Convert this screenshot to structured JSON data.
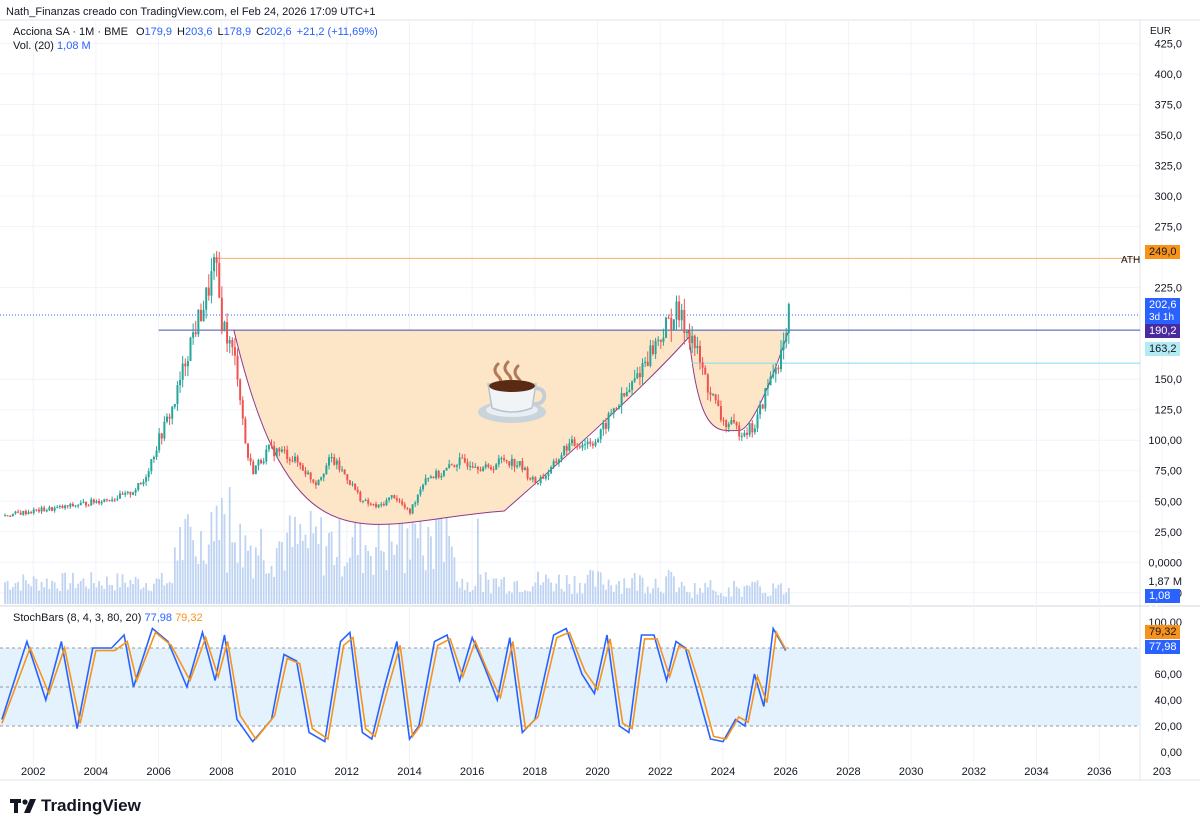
{
  "header": {
    "title": "Nath_Finanzas creado con TradingView.com, el Feb 24, 2026 17:09 UTC+1"
  },
  "legend": {
    "symbol": "Acciona SA · 1M · BME",
    "o_label": "O",
    "o_value": "179,9",
    "h_label": "H",
    "h_value": "203,6",
    "l_label": "L",
    "l_value": "178,9",
    "c_label": "C",
    "c_value": "202,6",
    "change": "+21,2 (+11,69%)",
    "vol_label": "Vol. (20)",
    "vol_value": "1,08 M"
  },
  "stoch_legend": {
    "label": "StochBars (8, 4, 3, 80, 20)",
    "k_value": "77,98",
    "d_value": "79,32"
  },
  "brand": "TradingView",
  "colors": {
    "up": "#26a69a",
    "down": "#ef5350",
    "blue": "#2962ff",
    "orange": "#f7931a",
    "cup_fill": "#fde6c8",
    "volume": "#bfd3f2",
    "stoch_band": "#e3f2fd"
  },
  "icons": {
    "cup": "coffee-cup-icon",
    "logo": "tradingview-logo-icon"
  },
  "chart_data": [
    {
      "type": "candlestick",
      "currency": "EUR",
      "y_axis_ticks": [
        "425,0",
        "400,0",
        "375,0",
        "350,0",
        "325,0",
        "300,0",
        "275,0",
        "225,0",
        "150,0",
        "125,0",
        "100,00",
        "75,00",
        "50,00",
        "25,00",
        "0,0000",
        "-25,00"
      ],
      "x_axis_ticks": [
        "2002",
        "2004",
        "2006",
        "2008",
        "2010",
        "2012",
        "2014",
        "2016",
        "2018",
        "2020",
        "2022",
        "2024",
        "2026",
        "2028",
        "2030",
        "2032",
        "2034",
        "2036",
        "203"
      ],
      "x_range": [
        2001.1,
        2037.3
      ],
      "y_range": [
        -35,
        432
      ],
      "grid": true,
      "approx_close_path": [
        [
          2001.0,
          38
        ],
        [
          2002.0,
          42
        ],
        [
          2003.0,
          45
        ],
        [
          2004.0,
          50
        ],
        [
          2005.0,
          55
        ],
        [
          2005.5,
          65
        ],
        [
          2006.0,
          100
        ],
        [
          2006.5,
          130
        ],
        [
          2007.0,
          180
        ],
        [
          2007.5,
          215
        ],
        [
          2007.8,
          245
        ],
        [
          2008.0,
          200
        ],
        [
          2008.5,
          160
        ],
        [
          2008.8,
          90
        ],
        [
          2009.0,
          75
        ],
        [
          2009.5,
          92
        ],
        [
          2010.0,
          90
        ],
        [
          2010.5,
          80
        ],
        [
          2011.0,
          65
        ],
        [
          2011.5,
          85
        ],
        [
          2012.0,
          70
        ],
        [
          2012.5,
          50
        ],
        [
          2013.0,
          45
        ],
        [
          2013.5,
          55
        ],
        [
          2014.0,
          40
        ],
        [
          2014.5,
          70
        ],
        [
          2015.0,
          72
        ],
        [
          2015.5,
          82
        ],
        [
          2016.0,
          82
        ],
        [
          2016.5,
          76
        ],
        [
          2017.0,
          85
        ],
        [
          2017.5,
          80
        ],
        [
          2018.0,
          65
        ],
        [
          2018.5,
          75
        ],
        [
          2019.0,
          95
        ],
        [
          2019.5,
          98
        ],
        [
          2020.0,
          100
        ],
        [
          2020.5,
          125
        ],
        [
          2021.0,
          140
        ],
        [
          2021.5,
          165
        ],
        [
          2022.0,
          185
        ],
        [
          2022.5,
          205
        ],
        [
          2023.0,
          185
        ],
        [
          2023.5,
          145
        ],
        [
          2024.0,
          115
        ],
        [
          2024.5,
          108
        ],
        [
          2025.0,
          110
        ],
        [
          2025.5,
          150
        ],
        [
          2026.0,
          180
        ],
        [
          2026.1,
          202.6
        ]
      ],
      "ath": {
        "label": "ATH",
        "value": "249,0",
        "value_num": 249.0
      },
      "levels": [
        {
          "name": "last",
          "value": "202,6",
          "value_num": 202.6,
          "countdown": "3d 1h"
        },
        {
          "name": "rim",
          "value": "190,2",
          "value_num": 190.2
        },
        {
          "name": "handle",
          "value": "163,2",
          "value_num": 163.2
        }
      ],
      "pattern": {
        "name": "cup-and-handle",
        "rim": 190.2,
        "cup_bottom": 42,
        "cup_x": [
          2008.4,
          2023.1
        ],
        "handle_bottom": 108,
        "handle_x": [
          2022.9,
          2026.1
        ]
      },
      "volume": {
        "label": "Vol. (20)",
        "axis_ticks": [
          "1,87 M"
        ],
        "last": "1,08 M"
      }
    },
    {
      "type": "line",
      "title": "StochBars (8, 4, 3, 80, 20)",
      "y_axis_ticks": [
        "100,00",
        "60,00",
        "40,00",
        "20,00",
        "0,00"
      ],
      "y_range": [
        0,
        100
      ],
      "bands": [
        20,
        50,
        80
      ],
      "series": [
        {
          "name": "%K",
          "value": "77,98",
          "approx": [
            [
              2001.0,
              25
            ],
            [
              2001.8,
              85
            ],
            [
              2002.4,
              40
            ],
            [
              2002.9,
              85
            ],
            [
              2003.4,
              18
            ],
            [
              2003.9,
              80
            ],
            [
              2004.5,
              80
            ],
            [
              2004.9,
              90
            ],
            [
              2005.2,
              50
            ],
            [
              2005.8,
              95
            ],
            [
              2006.3,
              85
            ],
            [
              2006.9,
              50
            ],
            [
              2007.4,
              92
            ],
            [
              2007.8,
              55
            ],
            [
              2008.1,
              90
            ],
            [
              2008.5,
              25
            ],
            [
              2009.0,
              8
            ],
            [
              2009.6,
              25
            ],
            [
              2010.0,
              75
            ],
            [
              2010.4,
              70
            ],
            [
              2010.8,
              15
            ],
            [
              2011.3,
              8
            ],
            [
              2011.8,
              85
            ],
            [
              2012.1,
              92
            ],
            [
              2012.5,
              15
            ],
            [
              2012.8,
              10
            ],
            [
              2013.2,
              50
            ],
            [
              2013.6,
              85
            ],
            [
              2014.0,
              10
            ],
            [
              2014.3,
              20
            ],
            [
              2014.8,
              85
            ],
            [
              2015.2,
              90
            ],
            [
              2015.6,
              55
            ],
            [
              2016.0,
              88
            ],
            [
              2016.4,
              65
            ],
            [
              2016.8,
              40
            ],
            [
              2017.2,
              88
            ],
            [
              2017.6,
              15
            ],
            [
              2018.0,
              25
            ],
            [
              2018.6,
              90
            ],
            [
              2019.0,
              95
            ],
            [
              2019.5,
              60
            ],
            [
              2019.9,
              45
            ],
            [
              2020.3,
              90
            ],
            [
              2020.7,
              20
            ],
            [
              2021.0,
              15
            ],
            [
              2021.4,
              90
            ],
            [
              2021.8,
              90
            ],
            [
              2022.2,
              55
            ],
            [
              2022.5,
              85
            ],
            [
              2022.8,
              80
            ],
            [
              2023.2,
              45
            ],
            [
              2023.6,
              10
            ],
            [
              2024.0,
              8
            ],
            [
              2024.4,
              25
            ],
            [
              2024.7,
              20
            ],
            [
              2025.0,
              60
            ],
            [
              2025.3,
              35
            ],
            [
              2025.6,
              95
            ],
            [
              2026.0,
              78
            ]
          ]
        },
        {
          "name": "%D",
          "value": "79,32",
          "approx": [
            [
              2001.0,
              22
            ],
            [
              2001.9,
              80
            ],
            [
              2002.5,
              45
            ],
            [
              2003.0,
              80
            ],
            [
              2003.5,
              22
            ],
            [
              2004.0,
              78
            ],
            [
              2004.6,
              78
            ],
            [
              2005.0,
              85
            ],
            [
              2005.3,
              55
            ],
            [
              2005.9,
              92
            ],
            [
              2006.4,
              82
            ],
            [
              2007.0,
              55
            ],
            [
              2007.5,
              88
            ],
            [
              2007.9,
              58
            ],
            [
              2008.2,
              85
            ],
            [
              2008.6,
              28
            ],
            [
              2009.1,
              10
            ],
            [
              2009.7,
              28
            ],
            [
              2010.1,
              72
            ],
            [
              2010.5,
              68
            ],
            [
              2010.9,
              18
            ],
            [
              2011.4,
              10
            ],
            [
              2011.9,
              82
            ],
            [
              2012.2,
              88
            ],
            [
              2012.6,
              18
            ],
            [
              2012.9,
              12
            ],
            [
              2013.3,
              48
            ],
            [
              2013.7,
              82
            ],
            [
              2014.1,
              12
            ],
            [
              2014.4,
              22
            ],
            [
              2014.9,
              82
            ],
            [
              2015.3,
              87
            ],
            [
              2015.7,
              58
            ],
            [
              2016.1,
              85
            ],
            [
              2016.5,
              62
            ],
            [
              2016.9,
              42
            ],
            [
              2017.3,
              85
            ],
            [
              2017.7,
              18
            ],
            [
              2018.1,
              27
            ],
            [
              2018.7,
              88
            ],
            [
              2019.1,
              92
            ],
            [
              2019.6,
              62
            ],
            [
              2020.0,
              48
            ],
            [
              2020.4,
              87
            ],
            [
              2020.8,
              22
            ],
            [
              2021.1,
              18
            ],
            [
              2021.5,
              87
            ],
            [
              2021.9,
              87
            ],
            [
              2022.3,
              58
            ],
            [
              2022.6,
              82
            ],
            [
              2022.9,
              78
            ],
            [
              2023.3,
              48
            ],
            [
              2023.7,
              12
            ],
            [
              2024.1,
              10
            ],
            [
              2024.5,
              27
            ],
            [
              2024.8,
              23
            ],
            [
              2025.1,
              58
            ],
            [
              2025.4,
              38
            ],
            [
              2025.7,
              92
            ],
            [
              2026.0,
              79
            ]
          ]
        }
      ]
    }
  ]
}
